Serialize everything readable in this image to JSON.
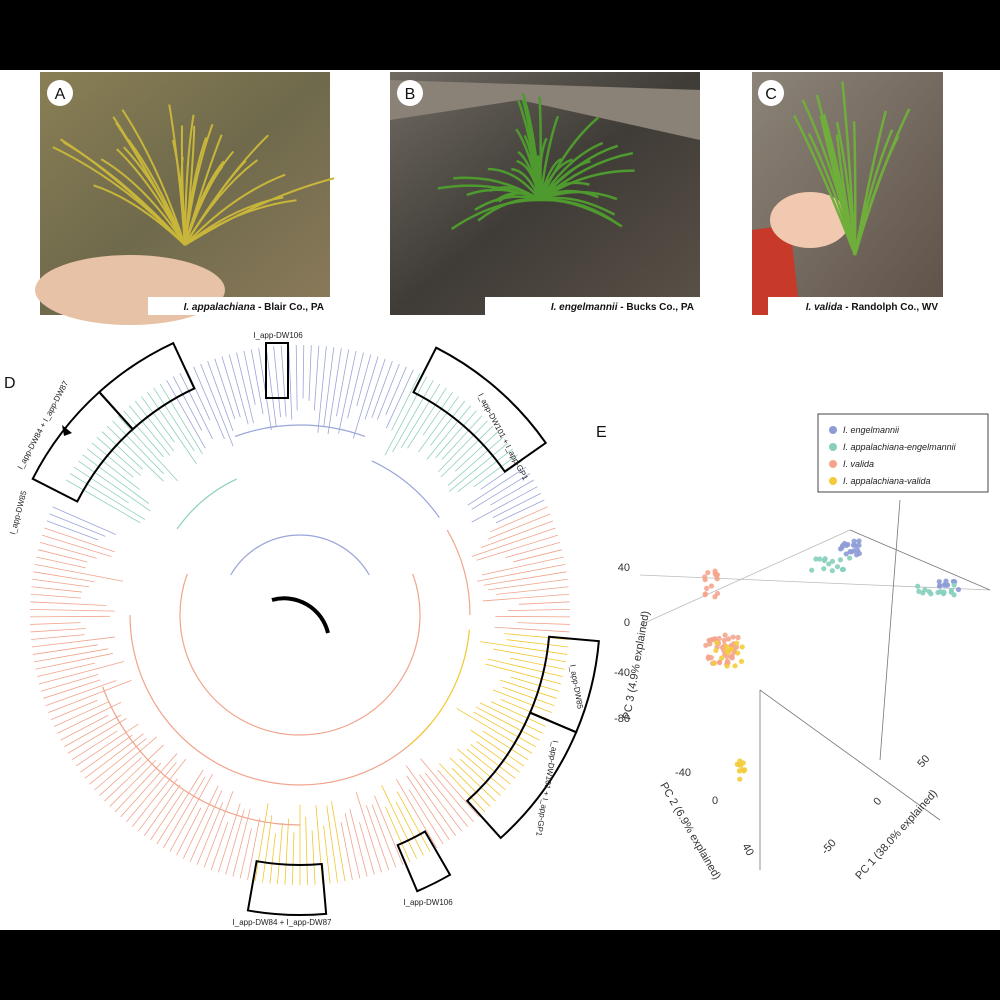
{
  "photos": [
    {
      "letter": "A",
      "species": "I. appalachiana",
      "location": "- Blair Co., PA"
    },
    {
      "letter": "B",
      "species": "I. engelmannii",
      "location": "- Bucks Co., PA"
    },
    {
      "letter": "C",
      "species": "I. valida",
      "location": "- Randolph Co., WV"
    }
  ],
  "tree": {
    "letter": "D",
    "clade_labels": [
      "I_app-DW106",
      "I_app-DW84 + I_app-DW87",
      "I_app-DW85",
      "I_app-DW101 + I_app-GP1",
      "I_app-DW85",
      "I_app-DW101 + I_app-GP1",
      "I_app-DW106",
      "I_app-DW84 + I_app-DW87"
    ]
  },
  "pca": {
    "letter": "E",
    "legend": [
      "I. engelmannii",
      "I. appalachiana-engelmannii",
      "I. valida",
      "I. appalachiana-valida"
    ],
    "pc3_label": "PC 3 (4.9% explained)",
    "pc2_label": "PC 2 (6.9% explained)",
    "pc1_label": "PC 1 (38.0% explained)",
    "pc3_ticks": [
      "40",
      "0",
      "-40",
      "-80"
    ],
    "pc2_ticks": [
      "-40",
      "0",
      "40"
    ],
    "pc1_ticks": [
      "-50",
      "0",
      "50"
    ]
  }
}
